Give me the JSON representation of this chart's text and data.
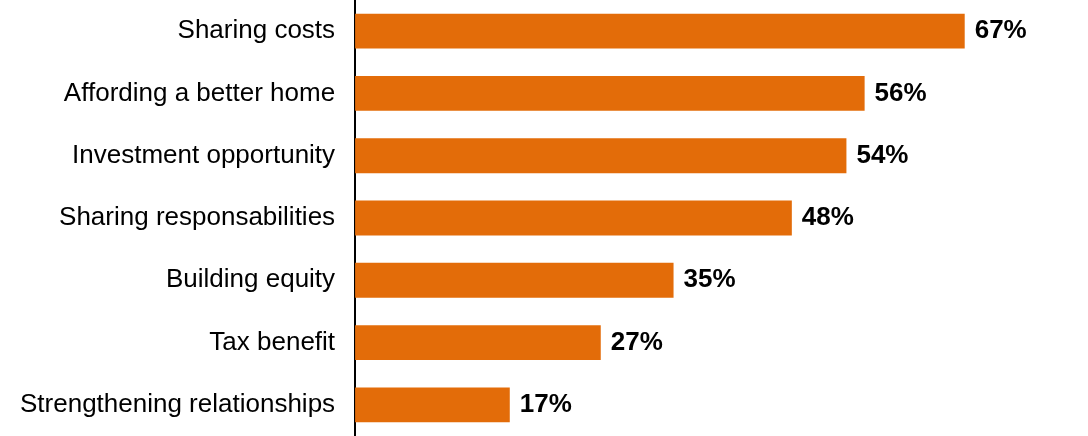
{
  "chart_data": {
    "type": "bar",
    "orientation": "horizontal",
    "categories": [
      "Sharing costs",
      "Affording a better home",
      "Investment opportunity",
      "Sharing responsabilities",
      "Building equity",
      "Tax benefit",
      "Strengthening relationships"
    ],
    "values": [
      67,
      56,
      54,
      48,
      35,
      27,
      17
    ],
    "value_labels": [
      "67%",
      "56%",
      "54%",
      "48%",
      "35%",
      "27%",
      "17%"
    ],
    "color": "#e36c09",
    "tick_labels": "y"
  }
}
